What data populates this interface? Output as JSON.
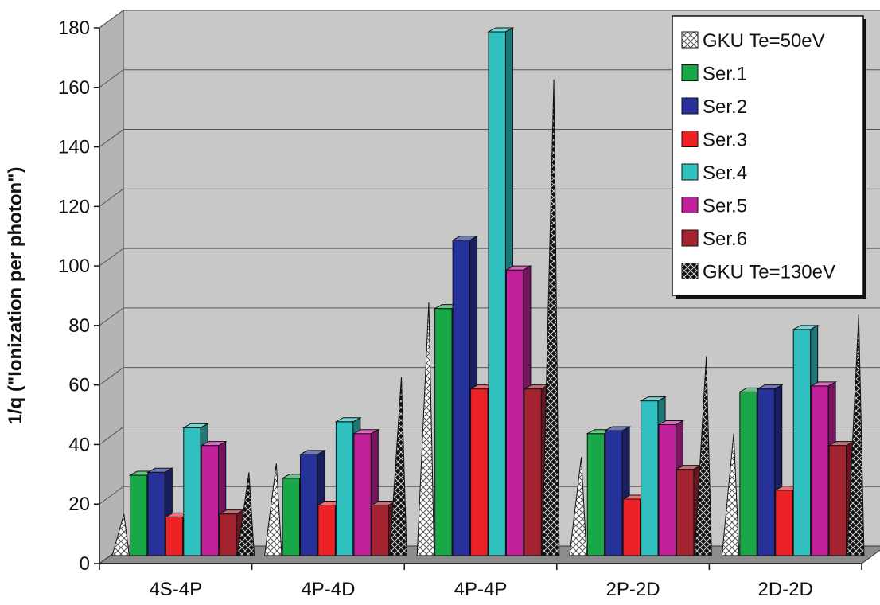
{
  "chart_data": {
    "type": "bar",
    "ylabel": "1/q (\"Ionization per photon\")",
    "xlabel": "",
    "title": "",
    "ylim": [
      0,
      180
    ],
    "yticks": [
      0,
      20,
      40,
      60,
      80,
      100,
      120,
      140,
      160,
      180
    ],
    "grid": true,
    "legend_position": "top-right",
    "categories": [
      "4S-4P",
      "4P-4D",
      "4P-4P",
      "2P-2D",
      "2D-2D"
    ],
    "series": [
      {
        "name": "GKU Te=50eV",
        "shape": "cone",
        "pattern": "light-checker",
        "color": "#ffffff",
        "values": [
          14,
          31,
          85,
          33,
          41
        ]
      },
      {
        "name": "Ser.1",
        "shape": "bar",
        "color": "#18a848",
        "values": [
          27,
          26,
          83,
          41,
          55
        ]
      },
      {
        "name": "Ser.2",
        "shape": "bar",
        "color": "#27319a",
        "values": [
          28,
          34,
          106,
          42,
          56
        ]
      },
      {
        "name": "Ser.3",
        "shape": "bar",
        "color": "#ec2227",
        "values": [
          13,
          17,
          56,
          19,
          22
        ]
      },
      {
        "name": "Ser.4",
        "shape": "bar",
        "color": "#30c0c0",
        "values": [
          43,
          45,
          176,
          52,
          76
        ]
      },
      {
        "name": "Ser.5",
        "shape": "bar",
        "color": "#c0209a",
        "values": [
          37,
          41,
          96,
          44,
          57
        ]
      },
      {
        "name": "Ser.6",
        "shape": "bar",
        "color": "#a32430",
        "values": [
          14,
          17,
          56,
          29,
          37
        ]
      },
      {
        "name": "GKU Te=130eV",
        "shape": "cone",
        "pattern": "dark-checker",
        "color": "#111111",
        "values": [
          28,
          60,
          160,
          67,
          81
        ]
      }
    ]
  },
  "colors": {
    "wall": "#c8c8c8",
    "floor": "#8c8c8c",
    "gridline": "#555555"
  }
}
